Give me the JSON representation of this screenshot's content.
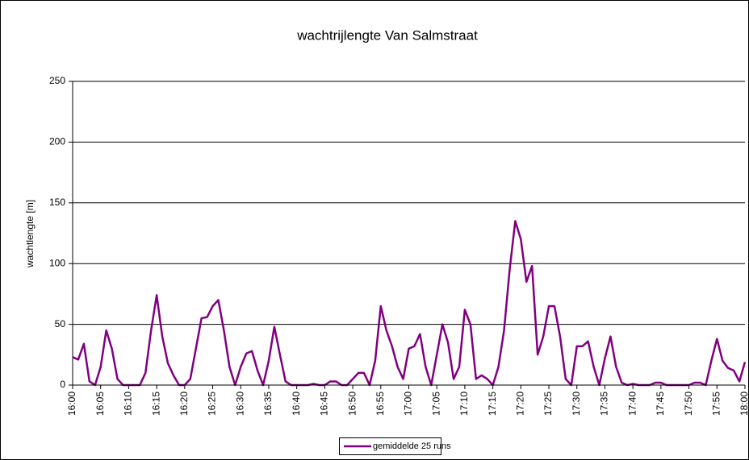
{
  "chart_data": {
    "type": "line",
    "title": "wachtrijlengte Van Salmstraat",
    "y_label": "wachtlengte [m]",
    "categories": [
      "16:00",
      null,
      null,
      null,
      null,
      "16:05",
      null,
      null,
      null,
      null,
      "16:10",
      null,
      null,
      null,
      null,
      "16:15",
      null,
      null,
      null,
      null,
      "16:20",
      null,
      null,
      null,
      null,
      "16:25",
      null,
      null,
      null,
      null,
      "16:30",
      null,
      null,
      null,
      null,
      "16:35",
      null,
      null,
      null,
      null,
      "16:40",
      null,
      null,
      null,
      null,
      "16:45",
      null,
      null,
      null,
      null,
      "16:50",
      null,
      null,
      null,
      null,
      "16:55",
      null,
      null,
      null,
      null,
      "17:00",
      null,
      null,
      null,
      null,
      "17:05",
      null,
      null,
      null,
      null,
      "17:10",
      null,
      null,
      null,
      null,
      "17:15",
      null,
      null,
      null,
      null,
      "17:20",
      null,
      null,
      null,
      null,
      "17:25",
      null,
      null,
      null,
      null,
      "17:30",
      null,
      null,
      null,
      null,
      "17:35",
      null,
      null,
      null,
      null,
      "17:40",
      null,
      null,
      null,
      null,
      "17:45",
      null,
      null,
      null,
      null,
      "17:50",
      null,
      null,
      null,
      null,
      "17:55",
      null,
      null,
      null,
      null,
      "18:00"
    ],
    "series": [
      {
        "name": "gemiddelde 25 runs",
        "color": "#800080",
        "values": [
          23,
          21,
          34,
          3,
          0,
          15,
          45,
          30,
          5,
          0,
          0,
          0,
          0,
          10,
          45,
          74,
          40,
          18,
          8,
          0,
          0,
          5,
          30,
          55,
          56,
          65,
          70,
          45,
          15,
          0,
          15,
          26,
          28,
          12,
          0,
          20,
          48,
          25,
          3,
          0,
          0,
          0,
          0,
          1,
          0,
          0,
          3,
          3,
          0,
          0,
          5,
          10,
          10,
          0,
          20,
          65,
          45,
          32,
          15,
          5,
          30,
          32,
          42,
          15,
          0,
          25,
          50,
          35,
          5,
          15,
          62,
          50,
          5,
          8,
          5,
          0,
          15,
          45,
          95,
          135,
          120,
          85,
          98,
          25,
          40,
          65,
          65,
          40,
          5,
          0,
          32,
          32,
          36,
          15,
          0,
          22,
          40,
          15,
          2,
          0,
          1,
          0,
          0,
          0,
          2,
          2,
          0,
          0,
          0,
          0,
          0,
          2,
          2,
          0,
          20,
          38,
          20,
          14,
          12,
          3,
          19
        ]
      }
    ],
    "ylim": [
      0,
      250
    ],
    "yticks": [
      0,
      50,
      100,
      150,
      200,
      250
    ],
    "grid": true,
    "legend": "bottom"
  }
}
